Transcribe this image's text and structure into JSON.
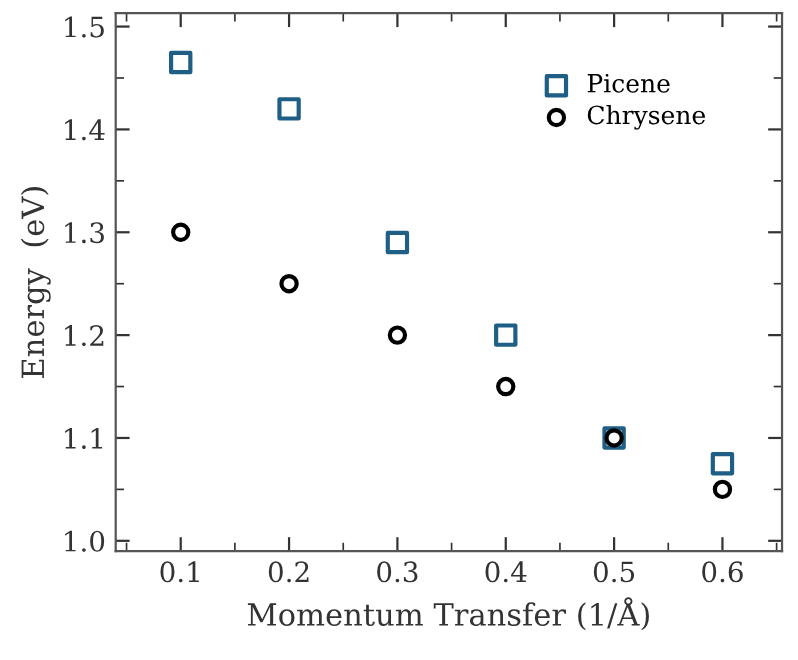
{
  "chart_data": {
    "type": "scatter",
    "xlabel": "Momentum Transfer (1/Å)",
    "ylabel": "Energy  (eV)",
    "x": [
      0.1,
      0.2,
      0.3,
      0.4,
      0.5,
      0.6
    ],
    "series": [
      {
        "name": "Picene",
        "color": "#1f5f85",
        "marker": "square",
        "values": [
          1.465,
          1.42,
          1.29,
          1.2,
          1.1,
          1.075
        ]
      },
      {
        "name": "Chrysene",
        "color": "#000000",
        "marker": "circle",
        "values": [
          1.3,
          1.25,
          1.2,
          1.15,
          1.1,
          1.05
        ]
      }
    ],
    "xlim": [
      0.04,
      0.655
    ],
    "ylim": [
      0.99,
      1.513
    ],
    "xticks": [
      0.1,
      0.2,
      0.3,
      0.4,
      0.5,
      0.6,
      {
        "value": 0.05,
        "label": null
      },
      {
        "value": 0.15,
        "label": null
      },
      {
        "value": 0.25,
        "label": null
      },
      {
        "value": 0.35,
        "label": null
      },
      {
        "value": 0.45,
        "label": null
      },
      {
        "value": 0.55,
        "label": null
      },
      {
        "value": 0.65,
        "label": null
      }
    ],
    "yticks": [
      {
        "value": 1.0,
        "label": "1.0"
      },
      1.1,
      1.2,
      1.3,
      1.4,
      1.5,
      {
        "value": 1.05,
        "label": null
      },
      {
        "value": 1.15,
        "label": null
      },
      {
        "value": 1.25,
        "label": null
      },
      {
        "value": 1.35,
        "label": null
      },
      {
        "value": 1.45,
        "label": null
      }
    ],
    "grid": false,
    "legend": "top right"
  }
}
